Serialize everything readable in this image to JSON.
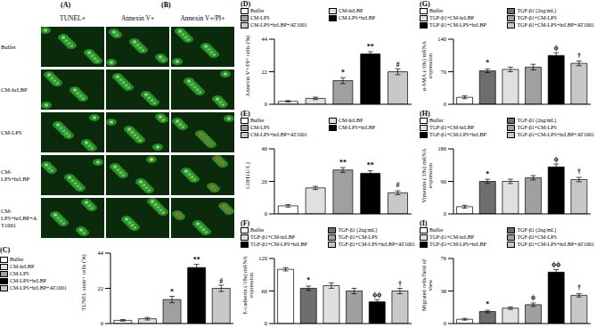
{
  "image_grid": {
    "panel_labels": [
      "(A)",
      "(B)"
    ],
    "columns": [
      "TUNEL+",
      "Annexin V+",
      "Annexin V+/PI+"
    ],
    "rows": [
      "Buffer",
      "CM-hrLBP",
      "CM-LPS",
      "CM-LPS+hrLBP",
      "CM-LPS+hrLBP+AT1001"
    ]
  },
  "chart_data": [
    {
      "type": "bar",
      "panel_label": "(C)",
      "ylabel": "TUNEL stain+ cells (%)",
      "categories": [
        "Buffer",
        "CM-hrLBP",
        "CM-LPS",
        "CM-LPS+hrLBP",
        "CM-LPS+hrLBP+AT1001"
      ],
      "values": [
        2,
        3,
        15,
        35,
        22
      ],
      "errors": [
        0.5,
        0.8,
        2,
        2,
        2
      ],
      "annotations": [
        null,
        null,
        "*",
        "**",
        "#"
      ],
      "colors": [
        "#ffffff",
        "#e0e0e0",
        "#a0a0a0",
        "#000000",
        "#c8c8c8"
      ],
      "ylim": [
        0,
        44
      ],
      "yticks": [
        0,
        22,
        44
      ],
      "tick_labels": "y",
      "legend": "left"
    },
    {
      "type": "bar",
      "panel_label": "(D)",
      "ylabel": "Annexin V+/PI+ cells (%)",
      "categories": [
        "Buffer",
        "CM-hrLBP",
        "CM-LPS",
        "CM-LPS+hrLBP",
        "CM-LPS+hrLBP+AT1001"
      ],
      "values": [
        2,
        4,
        16,
        34,
        22
      ],
      "errors": [
        0.5,
        0.8,
        2,
        1.5,
        2
      ],
      "annotations": [
        null,
        null,
        "*",
        "**",
        "#"
      ],
      "colors": [
        "#ffffff",
        "#e0e0e0",
        "#a0a0a0",
        "#000000",
        "#c8c8c8"
      ],
      "ylim": [
        0,
        44
      ],
      "yticks": [
        0,
        22,
        44
      ],
      "tick_labels": "y",
      "legend": "top"
    },
    {
      "type": "bar",
      "panel_label": "(E)",
      "ylabel": "LDH (U/L)",
      "categories": [
        "Buffer",
        "CM-hrLBP",
        "CM-LPS",
        "CM-LPS+hrLBP",
        "CM-LPS+hrLBP+AT1001"
      ],
      "values": [
        5,
        16,
        27,
        25,
        13
      ],
      "errors": [
        0.8,
        1,
        1.5,
        1.5,
        1.2
      ],
      "annotations": [
        null,
        null,
        "**",
        "**",
        "#"
      ],
      "colors": [
        "#ffffff",
        "#e0e0e0",
        "#a0a0a0",
        "#000000",
        "#c8c8c8"
      ],
      "ylim": [
        0,
        40
      ],
      "yticks": [
        0,
        20,
        40
      ],
      "tick_labels": "y",
      "legend": "top"
    },
    {
      "type": "bar",
      "panel_label": "(F)",
      "ylabel": "E-cadherin (/18s) mRNA expression",
      "categories": [
        "Buffer",
        "TGF-β1 (2ng/mL)",
        "TGF-β1+CM-hrLBP",
        "TGF-β1+CM-LPS",
        "TGF-β1+CM-LPS+hrLBP",
        "TGF-β1+CM-LPS+hrLBP+AT1001"
      ],
      "values": [
        100,
        65,
        70,
        60,
        40,
        60
      ],
      "errors": [
        3,
        4,
        5,
        5,
        4,
        5
      ],
      "annotations": [
        null,
        "*",
        null,
        null,
        "ϕϕ",
        "†"
      ],
      "colors": [
        "#ffffff",
        "#6e6e6e",
        "#e0e0e0",
        "#a0a0a0",
        "#000000",
        "#c8c8c8"
      ],
      "ylim": [
        0,
        120
      ],
      "yticks": [
        0,
        60,
        120
      ],
      "tick_labels": "y",
      "legend": "top"
    },
    {
      "type": "bar",
      "panel_label": "(G)",
      "ylabel": "α-SMA (/18s) mRNA expression",
      "categories": [
        "Buffer",
        "TGF-β1 (2ng/mL)",
        "TGF-β1+CM-hrLBP",
        "TGF-β1+CM-LPS",
        "TGF-β1+CM-LPS+hrLBP",
        "TGF-β1+CM-LPS+hrLBP+AT1001"
      ],
      "values": [
        15,
        72,
        75,
        80,
        105,
        88
      ],
      "errors": [
        3,
        4,
        5,
        6,
        6,
        5
      ],
      "annotations": [
        null,
        "*",
        null,
        null,
        "ϕ",
        "†"
      ],
      "colors": [
        "#ffffff",
        "#6e6e6e",
        "#e0e0e0",
        "#a0a0a0",
        "#000000",
        "#c8c8c8"
      ],
      "ylim": [
        0,
        140
      ],
      "yticks": [
        0,
        70,
        140
      ],
      "tick_labels": "y",
      "legend": "top"
    },
    {
      "type": "bar",
      "panel_label": "(H)",
      "ylabel": "Vimentin (/18s) mRNA expression",
      "categories": [
        "Buffer",
        "TGF-β1 (2ng/mL)",
        "TGF-β1+CM-hrLBP",
        "TGF-β1+CM-LPS",
        "TGF-β1+CM-LPS+hrLBP",
        "TGF-β1+CM-LPS+hrLBP+AT1001"
      ],
      "values": [
        20,
        90,
        90,
        100,
        130,
        95
      ],
      "errors": [
        4,
        6,
        6,
        6,
        8,
        6
      ],
      "annotations": [
        null,
        "*",
        null,
        null,
        "ϕ",
        "†"
      ],
      "colors": [
        "#ffffff",
        "#6e6e6e",
        "#e0e0e0",
        "#a0a0a0",
        "#000000",
        "#c8c8c8"
      ],
      "ylim": [
        0,
        180
      ],
      "yticks": [
        0,
        90,
        180
      ],
      "tick_labels": "y",
      "legend": "top"
    },
    {
      "type": "bar",
      "panel_label": "(I)",
      "ylabel": "Migrated cells/field of view",
      "categories": [
        "Buffer",
        "TGF-β1 (2ng/mL)",
        "TGF-β1+CM-hrLBP",
        "TGF-β1+CM-LPS",
        "TGF-β1+CM-LPS+hrLBP",
        "TGF-β1+CM-LPS+hrLBP+AT1001"
      ],
      "values": [
        5,
        14,
        18,
        22,
        60,
        33
      ],
      "errors": [
        1,
        1.5,
        1.5,
        2,
        3,
        2
      ],
      "annotations": [
        null,
        "*",
        null,
        "ϕ",
        "ϕϕ",
        "†"
      ],
      "colors": [
        "#ffffff",
        "#6e6e6e",
        "#e0e0e0",
        "#a0a0a0",
        "#000000",
        "#c8c8c8"
      ],
      "ylim": [
        0,
        76
      ],
      "yticks": [
        0,
        38,
        76
      ],
      "tick_labels": "y",
      "legend": "top"
    }
  ]
}
